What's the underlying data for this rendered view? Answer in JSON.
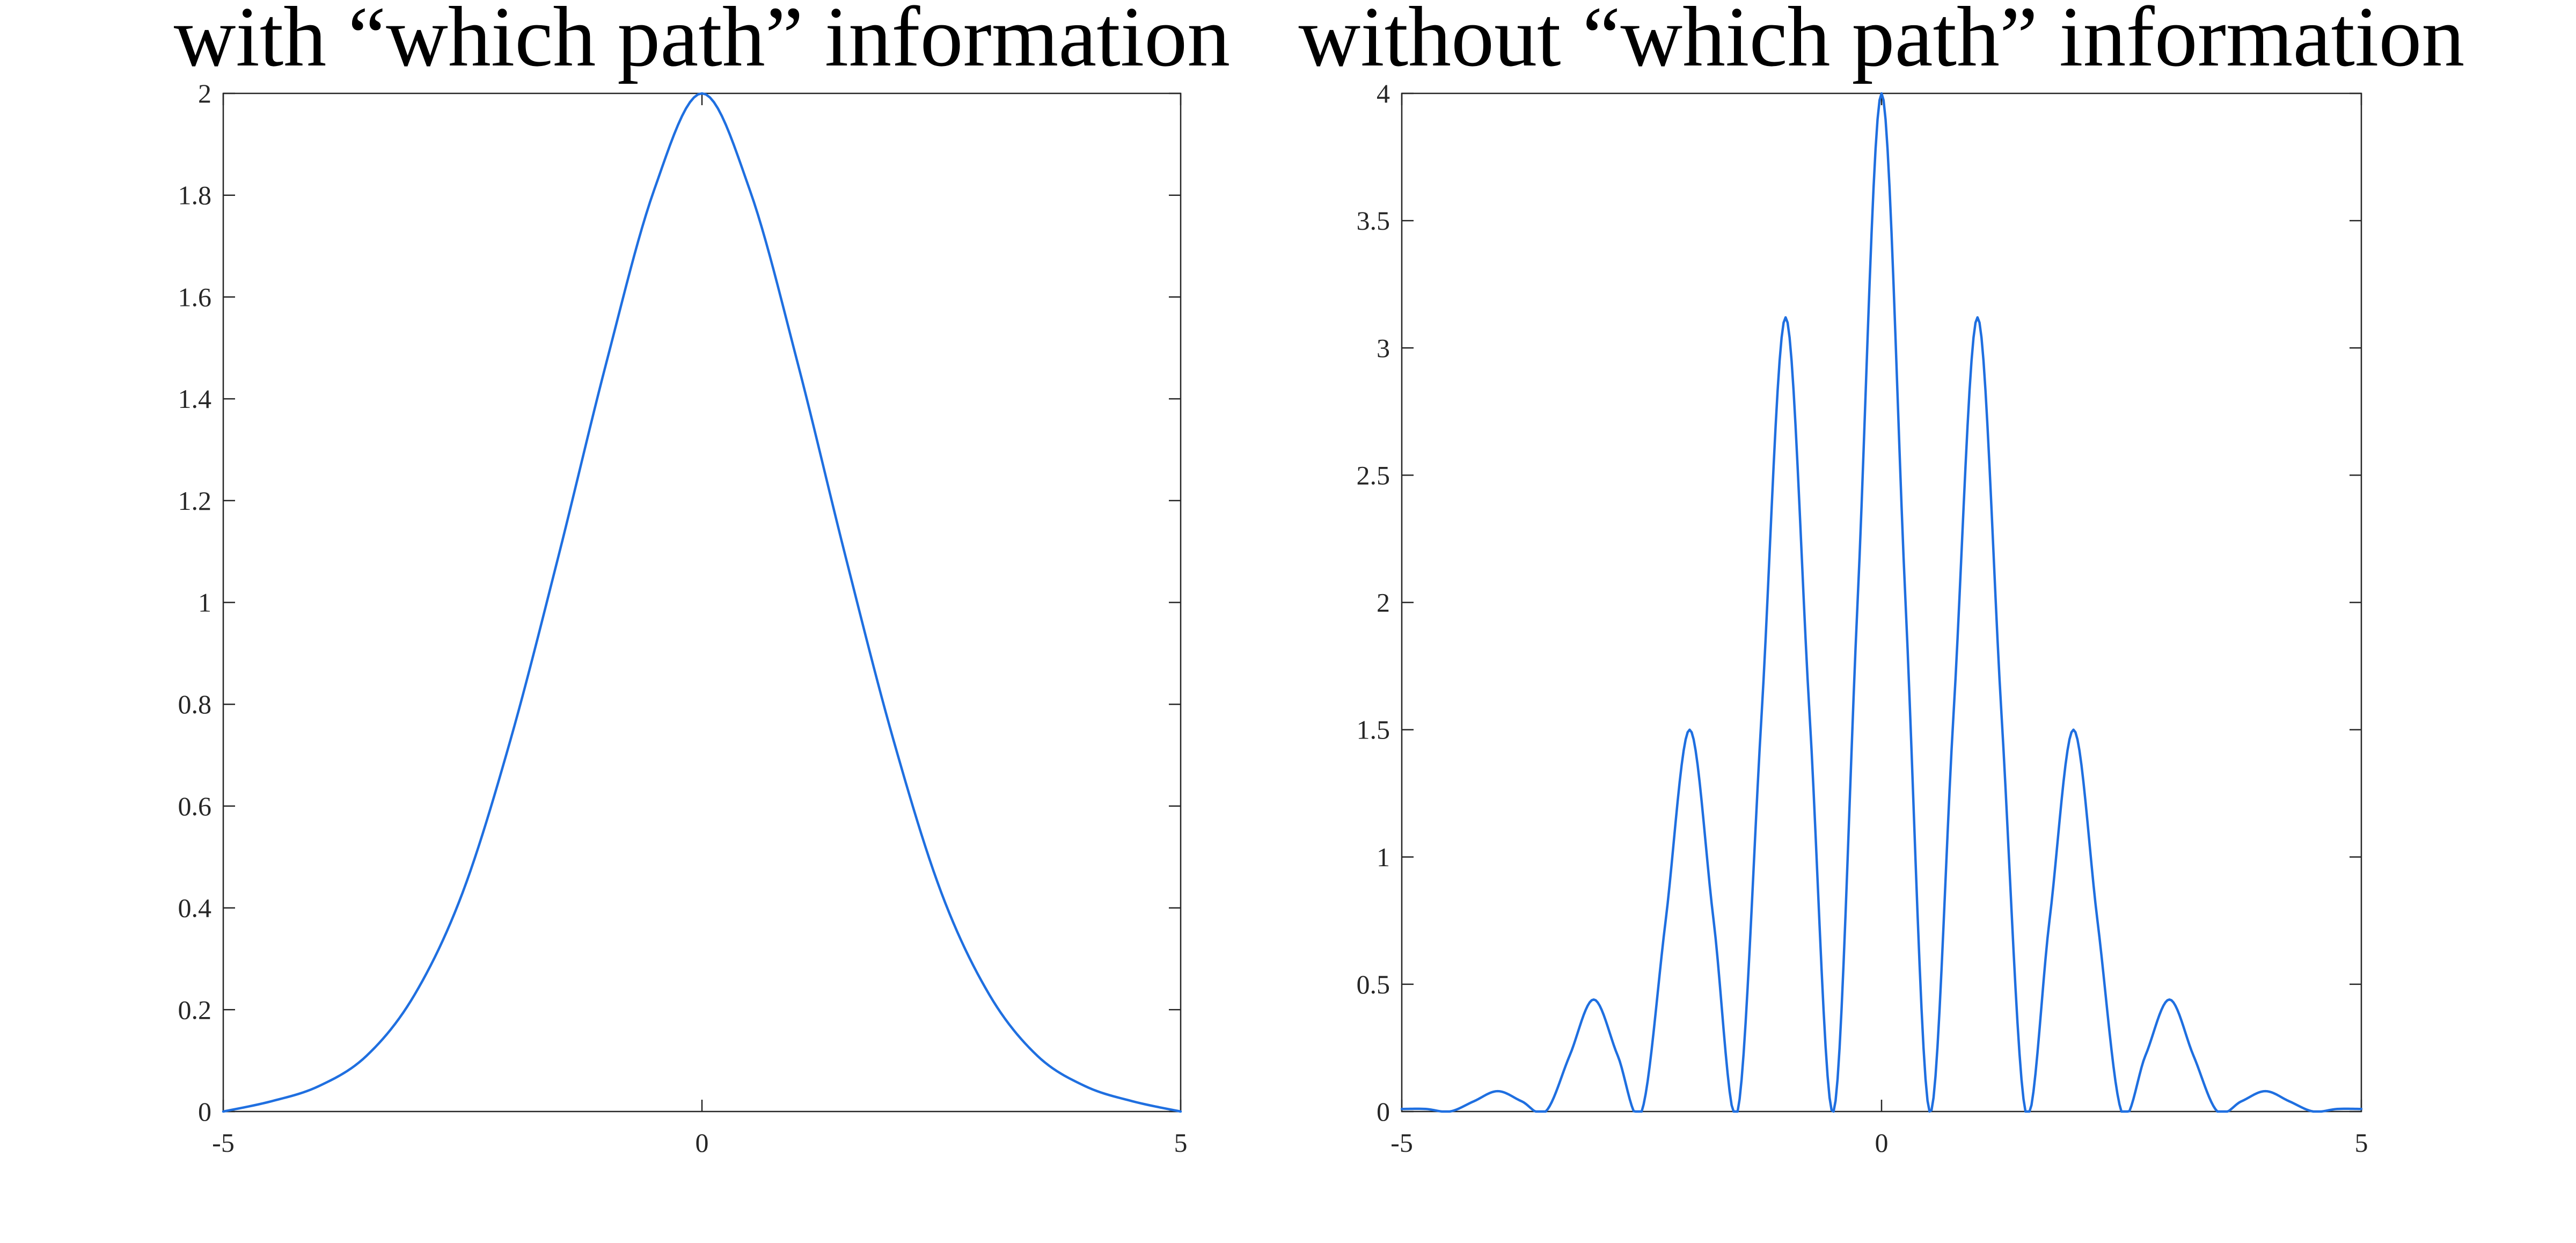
{
  "chart_data": [
    {
      "type": "line",
      "title": "with “which path” information",
      "xlabel": "",
      "ylabel": "",
      "xlim": [
        -5,
        5
      ],
      "ylim": [
        0,
        2
      ],
      "x_ticks": [
        -5,
        0,
        5
      ],
      "x_tick_labels": [
        "-5",
        "0",
        "5"
      ],
      "y_ticks": [
        0,
        0.2,
        0.4,
        0.6,
        0.8,
        1,
        1.2,
        1.4,
        1.6,
        1.8,
        2
      ],
      "y_tick_labels": [
        "0",
        "0.2",
        "0.4",
        "0.6",
        "0.8",
        "1",
        "1.2",
        "1.4",
        "1.6",
        "1.8",
        "2"
      ],
      "grid": false,
      "series": [
        {
          "color": "#1f6fe0",
          "x": [
            -5,
            -4.5,
            -4,
            -3.5,
            -3,
            -2.5,
            -2,
            -1.5,
            -1,
            -0.5,
            0,
            0.5,
            1,
            1.5,
            2,
            2.5,
            3,
            3.5,
            4,
            4.5,
            5
          ],
          "y": [
            0.0,
            0.02,
            0.05,
            0.11,
            0.23,
            0.43,
            0.73,
            1.09,
            1.47,
            1.81,
            2.0,
            1.81,
            1.47,
            1.09,
            0.73,
            0.43,
            0.23,
            0.11,
            0.05,
            0.02,
            0.0
          ]
        }
      ]
    },
    {
      "type": "line",
      "title": "without “which path” information",
      "xlabel": "",
      "ylabel": "",
      "xlim": [
        -5,
        5
      ],
      "ylim": [
        0,
        4
      ],
      "x_ticks": [
        -5,
        0,
        5
      ],
      "x_tick_labels": [
        "-5",
        "0",
        "5"
      ],
      "y_ticks": [
        0,
        0.5,
        1,
        1.5,
        2,
        2.5,
        3,
        3.5,
        4
      ],
      "y_tick_labels": [
        "0",
        "0.5",
        "1",
        "1.5",
        "2",
        "2.5",
        "3",
        "3.5",
        "4"
      ],
      "grid": false,
      "series": [
        {
          "color": "#1f6fe0",
          "x": [
            -5,
            -4.75,
            -4.5,
            -4.25,
            -4,
            -3.75,
            -3.5,
            -3.25,
            -3,
            -2.75,
            -2.5,
            -2.25,
            -2,
            -1.75,
            -1.5,
            -1.25,
            -1,
            -0.75,
            -0.5,
            -0.25,
            0,
            0.25,
            0.5,
            0.75,
            1,
            1.25,
            1.5,
            1.75,
            2,
            2.25,
            2.5,
            2.75,
            3,
            3.25,
            3.5,
            3.75,
            4,
            4.25,
            4.5,
            4.75,
            5
          ],
          "y": [
            0.01,
            0.01,
            0.0,
            0.04,
            0.08,
            0.04,
            0.0,
            0.22,
            0.44,
            0.22,
            0.0,
            0.75,
            1.5,
            0.75,
            0.0,
            1.56,
            3.12,
            1.56,
            0.0,
            2.0,
            4.0,
            2.0,
            0.0,
            1.56,
            3.12,
            1.56,
            0.0,
            0.75,
            1.5,
            0.75,
            0.0,
            0.22,
            0.44,
            0.22,
            0.0,
            0.04,
            0.08,
            0.04,
            0.0,
            0.01,
            0.01
          ]
        }
      ]
    }
  ]
}
